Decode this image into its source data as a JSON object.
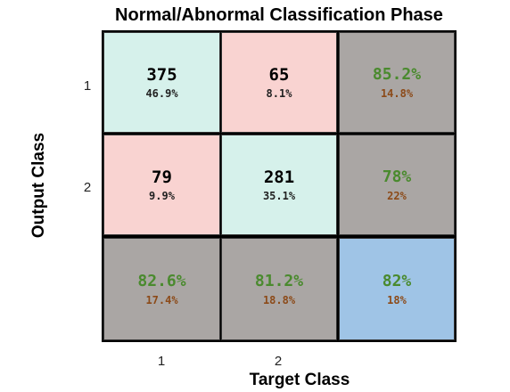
{
  "chart_data": {
    "type": "heatmap",
    "title": "Normal/Abnormal Classification Phase",
    "ylabel": "Output Class",
    "xlabel": "Target Class",
    "x_ticks": [
      "1",
      "2"
    ],
    "y_ticks": [
      "1",
      "2"
    ],
    "matrix": [
      [
        {
          "count": "375",
          "percent": "46.9%"
        },
        {
          "count": "65",
          "percent": "8.1%"
        }
      ],
      [
        {
          "count": "79",
          "percent": "9.9%"
        },
        {
          "count": "281",
          "percent": "35.1%"
        }
      ]
    ],
    "row_summary": [
      {
        "correct": "85.2%",
        "error": "14.8%"
      },
      {
        "correct": "78%",
        "error": "22%"
      }
    ],
    "col_summary": [
      {
        "correct": "82.6%",
        "error": "17.4%"
      },
      {
        "correct": "81.2%",
        "error": "18.8%"
      }
    ],
    "overall": {
      "correct": "82%",
      "error": "18%"
    }
  },
  "colors": {
    "correct_cell": "#d6f1eb",
    "error_cell": "#f9d3d1",
    "summary_cell": "#aaa6a4",
    "overall_cell": "#9fc4e6",
    "correct_text": "#4a8a2e",
    "error_text": "#8c4a18"
  }
}
